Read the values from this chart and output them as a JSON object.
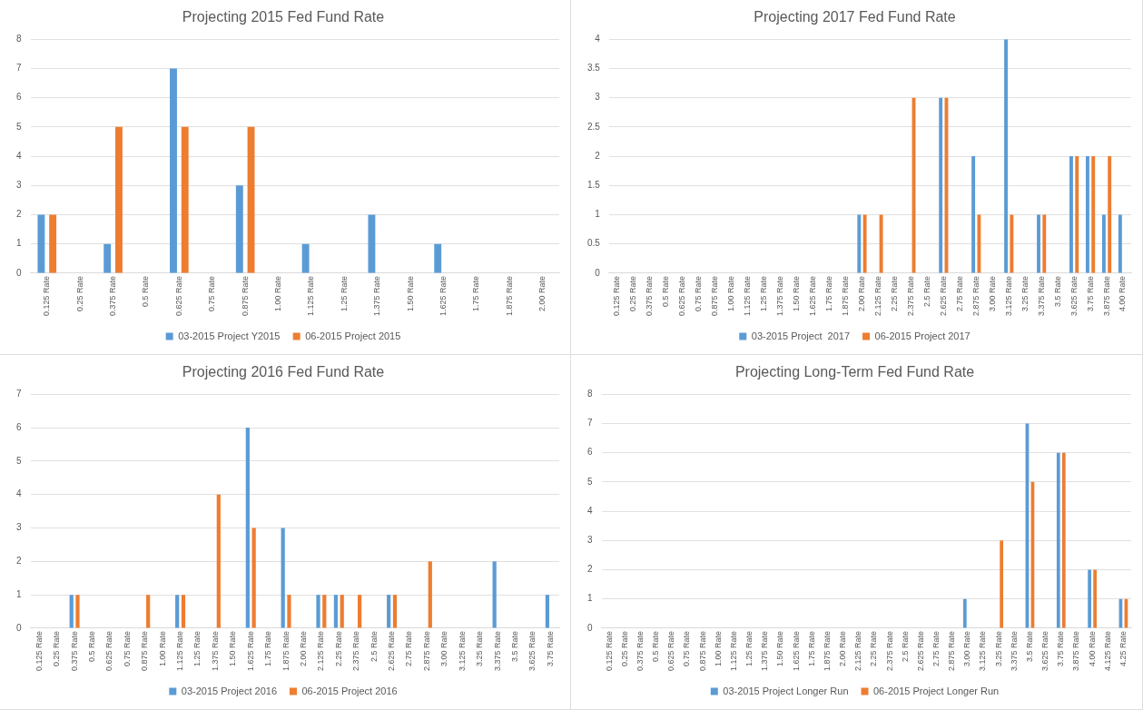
{
  "chart_data": [
    {
      "type": "bar",
      "title": "Projecting 2015 Fed Fund Rate",
      "categories": [
        "0.125 Rate",
        "0.25 Rate",
        "0.375 Rate",
        "0.5 Rate",
        "0.625 Rate",
        "0.75 Rate",
        "0.875 Rate",
        "1.00 Rate",
        "1.125 Rate",
        "1.25 Rate",
        "1.375 Rate",
        "1.50 Rate",
        "1.625 Rate",
        "1.75 Rate",
        "1.875 Rate",
        "2.00 Rate"
      ],
      "series": [
        {
          "name": "03-2015 Project Y2015",
          "color": "#5b9bd5",
          "values": [
            2,
            0,
            1,
            0,
            7,
            0,
            3,
            0,
            1,
            0,
            2,
            0,
            1,
            0,
            0,
            0
          ]
        },
        {
          "name": "06-2015 Project 2015",
          "color": "#ed7d31",
          "values": [
            2,
            0,
            5,
            0,
            5,
            0,
            5,
            0,
            0,
            0,
            0,
            0,
            0,
            0,
            0,
            0
          ]
        }
      ],
      "ylim": [
        0,
        8
      ],
      "yticks": [
        0,
        1,
        2,
        3,
        4,
        5,
        6,
        7,
        8
      ],
      "grid": "y",
      "legend": "bottom"
    },
    {
      "type": "bar",
      "title": "Projecting 2017 Fed Fund Rate",
      "categories": [
        "0.125 Rate",
        "0.25 Rate",
        "0.375 Rate",
        "0.5 Rate",
        "0.625 Rate",
        "0.75 Rate",
        "0.875 Rate",
        "1.00 Rate",
        "1.125 Rate",
        "1.25 Rate",
        "1.375 Rate",
        "1.50 Rate",
        "1.625 Rate",
        "1.75 Rate",
        "1.875 Rate",
        "2.00 Rate",
        "2.125 Rate",
        "2.25 Rate",
        "2.375 Rate",
        "2.5 Rate",
        "2.625 Rate",
        "2.75 Rate",
        "2.875 Rate",
        "3.00 Rate",
        "3.125 Rate",
        "3.25 Rate",
        "3.375 Rate",
        "3.5 Rate",
        "3.625 Rate",
        "3.75 Rate",
        "3.875 Rate",
        "4.00 Rate"
      ],
      "series": [
        {
          "name": "03-2015 Project  2017",
          "color": "#5b9bd5",
          "values": [
            0,
            0,
            0,
            0,
            0,
            0,
            0,
            0,
            0,
            0,
            0,
            0,
            0,
            0,
            0,
            1,
            0,
            0,
            0,
            0,
            3,
            0,
            2,
            0,
            4,
            0,
            1,
            0,
            2,
            2,
            1,
            1
          ]
        },
        {
          "name": "06-2015 Project 2017",
          "color": "#ed7d31",
          "values": [
            0,
            0,
            0,
            0,
            0,
            0,
            0,
            0,
            0,
            0,
            0,
            0,
            0,
            0,
            0,
            1,
            1,
            0,
            3,
            0,
            3,
            0,
            1,
            0,
            1,
            0,
            1,
            0,
            2,
            2,
            2,
            0
          ]
        }
      ],
      "ylim": [
        0,
        4
      ],
      "yticks": [
        0,
        0.5,
        1,
        1.5,
        2,
        2.5,
        3,
        3.5,
        4
      ],
      "grid": "y",
      "legend": "bottom"
    },
    {
      "type": "bar",
      "title": "Projecting 2016 Fed Fund Rate",
      "categories": [
        "0.125 Rate",
        "0.25 Rate",
        "0.375 Rate",
        "0.5 Rate",
        "0.625 Rate",
        "0.75 Rate",
        "0.875 Rate",
        "1.00 Rate",
        "1.125 Rate",
        "1.25 Rate",
        "1.375 Rate",
        "1.50 Rate",
        "1.625 Rate",
        "1.75 Rate",
        "1.875 Rate",
        "2.00 Rate",
        "2.125 Rate",
        "2.25 Rate",
        "2.375 Rate",
        "2.5 Rate",
        "2.625 Rate",
        "2.75 Rate",
        "2.875 Rate",
        "3.00 Rate",
        "3.125 Rate",
        "3.25 Rate",
        "3.375 Rate",
        "3.5 Rate",
        "3.625 Rate",
        "3.75 Rate"
      ],
      "series": [
        {
          "name": "03-2015 Project 2016",
          "color": "#5b9bd5",
          "values": [
            0,
            0,
            1,
            0,
            0,
            0,
            0,
            0,
            1,
            0,
            0,
            0,
            6,
            0,
            3,
            0,
            1,
            1,
            0,
            0,
            1,
            0,
            0,
            0,
            0,
            0,
            2,
            0,
            0,
            1
          ]
        },
        {
          "name": "06-2015 Project 2016",
          "color": "#ed7d31",
          "values": [
            0,
            0,
            1,
            0,
            0,
            0,
            1,
            0,
            1,
            0,
            4,
            0,
            3,
            0,
            1,
            0,
            1,
            1,
            1,
            0,
            1,
            0,
            2,
            0,
            0,
            0,
            0,
            0,
            0,
            0
          ]
        }
      ],
      "ylim": [
        0,
        7
      ],
      "yticks": [
        0,
        1,
        2,
        3,
        4,
        5,
        6,
        7
      ],
      "grid": "y",
      "legend": "bottom"
    },
    {
      "type": "bar",
      "title": "Projecting Long-Term Fed Fund Rate",
      "categories": [
        "0.125 Rate",
        "0.25 Rate",
        "0.375 Rate",
        "0.5 Rate",
        "0.625 Rate",
        "0.75 Rate",
        "0.875 Rate",
        "1.00 Rate",
        "1.125 Rate",
        "1.25 Rate",
        "1.375 Rate",
        "1.50 Rate",
        "1.625 Rate",
        "1.75 Rate",
        "1.875 Rate",
        "2.00 Rate",
        "2.125 Rate",
        "2.25 Rate",
        "2.375 Rate",
        "2.5 Rate",
        "2.625 Rate",
        "2.75 Rate",
        "2.875 Rate",
        "3.00 Rate",
        "3.125 Rate",
        "3.25 Rate",
        "3.375 Rate",
        "3.5 Rate",
        "3.625 Rate",
        "3.75 Rate",
        "3.875 Rate",
        "4.00 Rate",
        "4.125 Rate",
        "4.25 Rate"
      ],
      "series": [
        {
          "name": "03-2015 Project Longer Run",
          "color": "#5b9bd5",
          "values": [
            0,
            0,
            0,
            0,
            0,
            0,
            0,
            0,
            0,
            0,
            0,
            0,
            0,
            0,
            0,
            0,
            0,
            0,
            0,
            0,
            0,
            0,
            0,
            1,
            0,
            0,
            0,
            7,
            0,
            6,
            0,
            2,
            0,
            1
          ]
        },
        {
          "name": "06-2015 Project Longer Run",
          "color": "#ed7d31",
          "values": [
            0,
            0,
            0,
            0,
            0,
            0,
            0,
            0,
            0,
            0,
            0,
            0,
            0,
            0,
            0,
            0,
            0,
            0,
            0,
            0,
            0,
            0,
            0,
            0,
            0,
            3,
            0,
            5,
            0,
            6,
            0,
            2,
            0,
            1
          ]
        }
      ],
      "ylim": [
        0,
        8
      ],
      "yticks": [
        0,
        1,
        2,
        3,
        4,
        5,
        6,
        7,
        8
      ],
      "grid": "y",
      "legend": "bottom"
    }
  ]
}
